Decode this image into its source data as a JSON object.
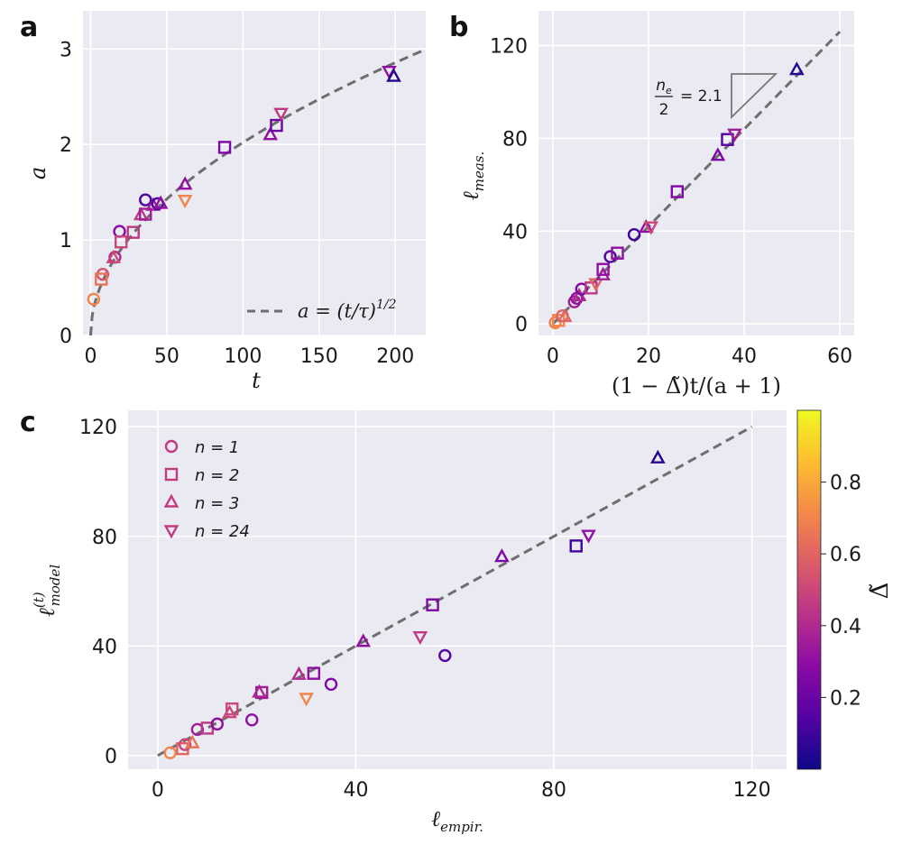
{
  "panels": {
    "a": "a",
    "b": "b",
    "c": "c"
  },
  "colormap": {
    "stops": [
      "#0d0887",
      "#5402a3",
      "#8b0aa5",
      "#b93289",
      "#db5c68",
      "#f48849",
      "#fdbd2f",
      "#f0f921"
    ],
    "vmin": 0.0,
    "vmax": 1.0,
    "label": "Δ̃",
    "ticks": [
      "0.2",
      "0.4",
      "0.6",
      "0.8"
    ]
  },
  "chart_data": [
    {
      "id": "a",
      "type": "scatter",
      "title": "",
      "xlabel": "t",
      "ylabel": "a",
      "xlim": [
        -5,
        220
      ],
      "ylim": [
        0,
        3.4
      ],
      "xticks": [
        0,
        50,
        100,
        150,
        200
      ],
      "yticks": [
        0,
        1,
        2,
        3
      ],
      "fit": {
        "label_lhs": "a = (t/τ)",
        "label_exp": "1/2",
        "type": "sqrt",
        "tau": 24.5
      },
      "points": [
        {
          "x": 2,
          "y": 0.38,
          "m": "o",
          "c": 0.7
        },
        {
          "x": 8,
          "y": 0.64,
          "m": "o",
          "c": 0.55
        },
        {
          "x": 7,
          "y": 0.59,
          "m": "s",
          "c": 0.65
        },
        {
          "x": 16,
          "y": 0.82,
          "m": "o",
          "c": 0.4
        },
        {
          "x": 15,
          "y": 0.81,
          "m": "^",
          "c": 0.5
        },
        {
          "x": 19,
          "y": 1.09,
          "m": "o",
          "c": 0.28
        },
        {
          "x": 20,
          "y": 0.98,
          "m": "s",
          "c": 0.5
        },
        {
          "x": 28,
          "y": 1.08,
          "m": "s",
          "c": 0.45
        },
        {
          "x": 33,
          "y": 1.26,
          "m": "^",
          "c": 0.45
        },
        {
          "x": 36,
          "y": 1.42,
          "m": "o",
          "c": 0.12
        },
        {
          "x": 36,
          "y": 1.27,
          "m": "s",
          "c": 0.35
        },
        {
          "x": 41,
          "y": 1.36,
          "m": "^",
          "c": 0.35
        },
        {
          "x": 44,
          "y": 1.38,
          "m": "o",
          "c": 0.12
        },
        {
          "x": 46,
          "y": 1.38,
          "m": "^",
          "c": 0.3
        },
        {
          "x": 62,
          "y": 1.58,
          "m": "^",
          "c": 0.3
        },
        {
          "x": 62,
          "y": 1.42,
          "m": "v",
          "c": 0.7
        },
        {
          "x": 88,
          "y": 1.97,
          "m": "s",
          "c": 0.25
        },
        {
          "x": 118,
          "y": 2.1,
          "m": "^",
          "c": 0.3
        },
        {
          "x": 122,
          "y": 2.2,
          "m": "s",
          "c": 0.2
        },
        {
          "x": 125,
          "y": 2.33,
          "m": "v",
          "c": 0.45
        },
        {
          "x": 196,
          "y": 2.77,
          "m": "v",
          "c": 0.3
        },
        {
          "x": 199,
          "y": 2.71,
          "m": "^",
          "c": 0.05
        }
      ]
    },
    {
      "id": "b",
      "type": "scatter",
      "title": "",
      "xlabel": "(1 − Δ̃)t/(a + 1)",
      "ylabel": "ℓ",
      "ylabel_sub": "meas.",
      "xlim": [
        -3,
        63
      ],
      "ylim": [
        -5,
        135
      ],
      "xticks": [
        0,
        20,
        40,
        60
      ],
      "yticks": [
        0,
        40,
        80,
        120
      ],
      "fit": {
        "type": "linear",
        "slope": 2.1,
        "x_range": [
          0,
          60
        ]
      },
      "annotation": {
        "numerator": "n",
        "numerator_sub": "e",
        "denominator": "2",
        "value": "= 2.1"
      },
      "points": [
        {
          "x": 0.5,
          "y": 0.5,
          "m": "o",
          "c": 0.7
        },
        {
          "x": 1.2,
          "y": 1.5,
          "m": "s",
          "c": 0.7
        },
        {
          "x": 2,
          "y": 3.5,
          "m": "o",
          "c": 0.6
        },
        {
          "x": 2.5,
          "y": 3,
          "m": "^",
          "c": 0.6
        },
        {
          "x": 4.5,
          "y": 9.5,
          "m": "o",
          "c": 0.35
        },
        {
          "x": 5,
          "y": 11,
          "m": "o",
          "c": 0.3
        },
        {
          "x": 5.5,
          "y": 12,
          "m": "^",
          "c": 0.4
        },
        {
          "x": 6,
          "y": 15,
          "m": "o",
          "c": 0.25
        },
        {
          "x": 8,
          "y": 15.5,
          "m": "s",
          "c": 0.45
        },
        {
          "x": 9,
          "y": 17.5,
          "m": "v",
          "c": 0.6
        },
        {
          "x": 10.5,
          "y": 21,
          "m": "^",
          "c": 0.35
        },
        {
          "x": 10.5,
          "y": 23.5,
          "m": "s",
          "c": 0.3
        },
        {
          "x": 12,
          "y": 29,
          "m": "o",
          "c": 0.15
        },
        {
          "x": 13.5,
          "y": 30.5,
          "m": "s",
          "c": 0.3
        },
        {
          "x": 17,
          "y": 38.5,
          "m": "o",
          "c": 0.1
        },
        {
          "x": 19.5,
          "y": 41.5,
          "m": "^",
          "c": 0.3
        },
        {
          "x": 20.5,
          "y": 42,
          "m": "v",
          "c": 0.5
        },
        {
          "x": 26,
          "y": 57,
          "m": "s",
          "c": 0.25
        },
        {
          "x": 34.5,
          "y": 72.5,
          "m": "^",
          "c": 0.25
        },
        {
          "x": 36.5,
          "y": 79.5,
          "m": "s",
          "c": 0.15
        },
        {
          "x": 38,
          "y": 82,
          "m": "v",
          "c": 0.35
        },
        {
          "x": 51,
          "y": 109.5,
          "m": "^",
          "c": 0.05
        }
      ]
    },
    {
      "id": "c",
      "type": "scatter",
      "title": "",
      "xlabel": "ℓ",
      "xlabel_sub": "empir.",
      "ylabel": "ℓ",
      "ylabel_sup": "(t)",
      "ylabel_sub": "model",
      "xlim": [
        -6,
        127
      ],
      "ylim": [
        -5,
        126
      ],
      "xticks": [
        0,
        40,
        80,
        120
      ],
      "yticks": [
        0,
        40,
        80,
        120
      ],
      "fit": {
        "type": "identity",
        "x_range": [
          0,
          120
        ]
      },
      "legend": [
        {
          "m": "o",
          "label": "n = 1"
        },
        {
          "m": "s",
          "label": "n = 2"
        },
        {
          "m": "^",
          "label": "n = 3"
        },
        {
          "m": "v",
          "label": "n = 24"
        }
      ],
      "points": [
        {
          "x": 2.5,
          "y": 1,
          "m": "o",
          "c": 0.7
        },
        {
          "x": 5,
          "y": 2.5,
          "m": "s",
          "c": 0.6
        },
        {
          "x": 5.5,
          "y": 4,
          "m": "o",
          "c": 0.5
        },
        {
          "x": 7,
          "y": 4.5,
          "m": "^",
          "c": 0.65
        },
        {
          "x": 8,
          "y": 9.5,
          "m": "o",
          "c": 0.35
        },
        {
          "x": 10,
          "y": 10,
          "m": "s",
          "c": 0.45
        },
        {
          "x": 12,
          "y": 11.5,
          "m": "o",
          "c": 0.3
        },
        {
          "x": 14.5,
          "y": 15.5,
          "m": "^",
          "c": 0.5
        },
        {
          "x": 15,
          "y": 17,
          "m": "s",
          "c": 0.5
        },
        {
          "x": 19,
          "y": 13,
          "m": "o",
          "c": 0.3
        },
        {
          "x": 20.5,
          "y": 23,
          "m": "^",
          "c": 0.4
        },
        {
          "x": 21,
          "y": 23,
          "m": "s",
          "c": 0.35
        },
        {
          "x": 28.5,
          "y": 29.5,
          "m": "^",
          "c": 0.4
        },
        {
          "x": 30,
          "y": 21,
          "m": "v",
          "c": 0.7
        },
        {
          "x": 31.5,
          "y": 30,
          "m": "s",
          "c": 0.3
        },
        {
          "x": 35,
          "y": 26,
          "m": "o",
          "c": 0.25
        },
        {
          "x": 41.5,
          "y": 41.5,
          "m": "^",
          "c": 0.3
        },
        {
          "x": 53,
          "y": 43.5,
          "m": "v",
          "c": 0.45
        },
        {
          "x": 55.5,
          "y": 55,
          "m": "s",
          "c": 0.25
        },
        {
          "x": 58,
          "y": 36.5,
          "m": "o",
          "c": 0.15
        },
        {
          "x": 69.5,
          "y": 72.5,
          "m": "^",
          "c": 0.25
        },
        {
          "x": 84.5,
          "y": 76.5,
          "m": "s",
          "c": 0.1
        },
        {
          "x": 87,
          "y": 80.5,
          "m": "v",
          "c": 0.3
        },
        {
          "x": 101,
          "y": 108.5,
          "m": "^",
          "c": 0.05
        }
      ]
    }
  ]
}
